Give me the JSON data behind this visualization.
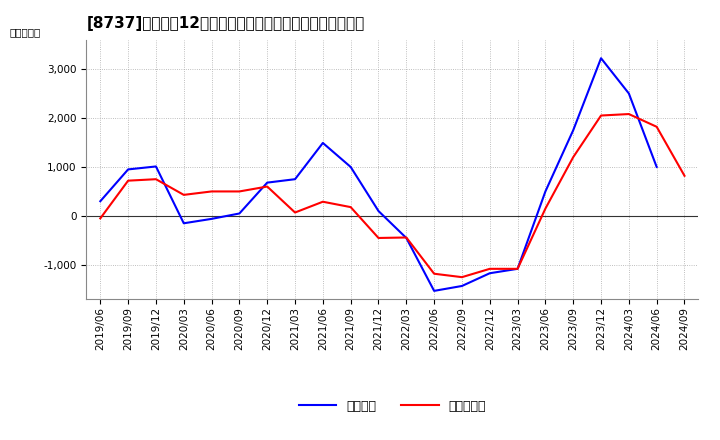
{
  "title": "[8737]　利益だ12か月移動合計の対前年同期増減額の推移",
  "ylabel": "（百万円）",
  "x_labels": [
    "2019/06",
    "2019/09",
    "2019/12",
    "2020/03",
    "2020/06",
    "2020/09",
    "2020/12",
    "2021/03",
    "2021/06",
    "2021/09",
    "2021/12",
    "2022/03",
    "2022/06",
    "2022/09",
    "2022/12",
    "2023/03",
    "2023/06",
    "2023/09",
    "2023/12",
    "2024/03",
    "2024/06",
    "2024/09"
  ],
  "keijo_rieki": [
    300,
    950,
    1010,
    -150,
    -60,
    50,
    680,
    750,
    1490,
    1000,
    100,
    -450,
    -1530,
    -1430,
    -1170,
    -1080,
    500,
    1750,
    3220,
    2500,
    1000,
    null
  ],
  "touki_jun_rieki": [
    -50,
    720,
    750,
    430,
    500,
    500,
    600,
    70,
    290,
    180,
    -450,
    -440,
    -1180,
    -1250,
    -1080,
    -1080,
    150,
    1200,
    2050,
    2080,
    1820,
    820
  ],
  "line_color_keijo": "#0000ff",
  "line_color_touki": "#ff0000",
  "ylim": [
    -1700,
    3600
  ],
  "yticks": [
    -1000,
    0,
    1000,
    2000,
    3000
  ],
  "bg_color": "#ffffff",
  "grid_color": "#aaaaaa",
  "legend_keijo": "経常利益",
  "legend_touki": "当期純利益",
  "title_fontsize": 11,
  "axis_fontsize": 7.5
}
